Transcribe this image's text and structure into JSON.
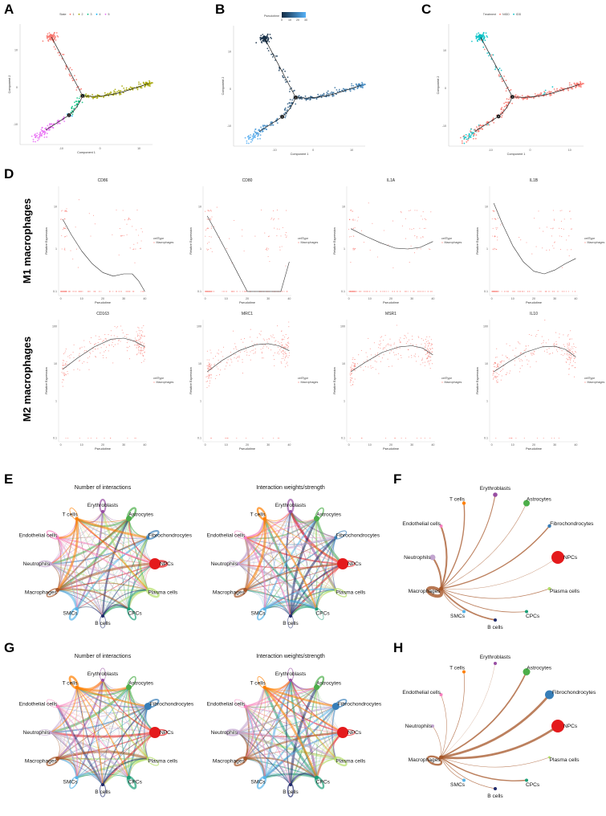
{
  "panel_labels": [
    "A",
    "B",
    "C",
    "D",
    "E",
    "F",
    "G",
    "H"
  ],
  "row_labels": {
    "m1": "M1 macrophages",
    "m2": "M2 macrophages"
  },
  "chart_data": {
    "trajectory_panels": [
      {
        "panel": "A",
        "type": "scatter",
        "xlabel": "Component 1",
        "ylabel": "Component 2",
        "xticks": [
          -10,
          0,
          10
        ],
        "yticks": [
          -10,
          0,
          10
        ],
        "xlim": [
          -20.6,
          13.5
        ],
        "ylim": [
          -15.4,
          17
        ],
        "color_by": "state",
        "legend": {
          "title": "State",
          "items": [
            "1",
            "2",
            "3",
            "4",
            "5"
          ],
          "colors": [
            "#F8766D",
            "#A3A500",
            "#00BF7D",
            "#00B0F6",
            "#E76BF3"
          ]
        }
      },
      {
        "panel": "B",
        "type": "scatter",
        "xlabel": "Component 1",
        "ylabel": "Component 2",
        "xticks": [
          -10,
          0,
          10
        ],
        "yticks": [
          -10,
          0,
          10
        ],
        "xlim": [
          -20.6,
          13.5
        ],
        "ylim": [
          -15.4,
          17
        ],
        "color_by": "pseudotime",
        "legend": {
          "title": "Pseudotime",
          "items": [
            "0",
            "10",
            "20",
            "30"
          ],
          "colors": [
            "#132B43",
            "#56B1F7"
          ]
        }
      },
      {
        "panel": "C",
        "type": "scatter",
        "xlabel": "Component 1",
        "ylabel": "Component 2",
        "xticks": [
          -10,
          0,
          10
        ],
        "yticks": [
          -10,
          0,
          10
        ],
        "xlim": [
          -20.6,
          13.5
        ],
        "ylim": [
          -15.4,
          17
        ],
        "color_by": "treatment",
        "legend": {
          "title": "Treatment",
          "items": [
            "NIDD",
            "IDD"
          ],
          "colors": [
            "#F8766D",
            "#00BFC4"
          ]
        }
      }
    ],
    "trajectory": {
      "upper_tip": [
        -12.5,
        13.5
      ],
      "branch_point_1": [
        -4.5,
        -2.3
      ],
      "branch_point_2": [
        -8,
        -7.5
      ],
      "lower_tip": [
        -14,
        -11.5
      ],
      "right_tip": [
        12.5,
        1.0
      ],
      "right_mid": [
        0,
        -2.5
      ]
    },
    "expression_panels": [
      {
        "gene": "CD86",
        "group": "m1",
        "xlabel": "Pseudotime",
        "ylabel": "Relative Expression",
        "xticks": [
          0,
          10,
          20,
          30,
          40
        ],
        "yticks": [
          0.1,
          1.0,
          10.0
        ],
        "ylim": [
          0.08,
          30
        ],
        "curve": [
          [
            1,
            5
          ],
          [
            5,
            2.2
          ],
          [
            10,
            0.9
          ],
          [
            15,
            0.45
          ],
          [
            20,
            0.28
          ],
          [
            25,
            0.23
          ],
          [
            30,
            0.26
          ],
          [
            34,
            0.26
          ],
          [
            37,
            0.18
          ],
          [
            40,
            0.1
          ]
        ]
      },
      {
        "gene": "CD80",
        "group": "m1",
        "xlabel": "Pseudotime",
        "ylabel": "Relative Expression",
        "xticks": [
          0,
          10,
          20,
          30,
          40
        ],
        "yticks": [
          0.1,
          1.0,
          10.0
        ],
        "ylim": [
          0.08,
          30
        ],
        "curve": [
          [
            1,
            6
          ],
          [
            5,
            2.6
          ],
          [
            10,
            0.9
          ],
          [
            15,
            0.3
          ],
          [
            20,
            0.1
          ],
          [
            30,
            0.1
          ],
          [
            36,
            0.1
          ],
          [
            40,
            0.5
          ]
        ]
      },
      {
        "gene": "IL1A",
        "group": "m1",
        "xlabel": "Pseudotime",
        "ylabel": "Relative Expression",
        "xticks": [
          0,
          10,
          20,
          30,
          40
        ],
        "yticks": [
          0.1,
          1.0,
          10.0
        ],
        "ylim": [
          0.08,
          30
        ],
        "curve": [
          [
            1,
            3
          ],
          [
            8,
            2
          ],
          [
            15,
            1.4
          ],
          [
            22,
            1.05
          ],
          [
            28,
            1.0
          ],
          [
            34,
            1.1
          ],
          [
            40,
            1.5
          ]
        ]
      },
      {
        "gene": "IL1B",
        "group": "m1",
        "xlabel": "Pseudotime",
        "ylabel": "Relative Expression",
        "xticks": [
          0,
          10,
          20,
          30,
          40
        ],
        "yticks": [
          0.1,
          1.0,
          10.0
        ],
        "ylim": [
          0.08,
          30
        ],
        "curve": [
          [
            1,
            12
          ],
          [
            5,
            4
          ],
          [
            10,
            1.2
          ],
          [
            15,
            0.5
          ],
          [
            20,
            0.3
          ],
          [
            25,
            0.26
          ],
          [
            30,
            0.32
          ],
          [
            35,
            0.45
          ],
          [
            40,
            0.6
          ]
        ]
      },
      {
        "gene": "CD163",
        "group": "m2",
        "xlabel": "Pseudotime",
        "ylabel": "Relative Expression",
        "xticks": [
          0,
          10,
          20,
          30,
          40
        ],
        "yticks": [
          0.1,
          1.0,
          10.0,
          100.0
        ],
        "ylim": [
          0.08,
          150
        ],
        "curve": [
          [
            1,
            7
          ],
          [
            8,
            14
          ],
          [
            16,
            28
          ],
          [
            24,
            45
          ],
          [
            30,
            48
          ],
          [
            35,
            40
          ],
          [
            40,
            28
          ]
        ]
      },
      {
        "gene": "MRC1",
        "group": "m2",
        "xlabel": "Pseudotime",
        "ylabel": "Relative Expression",
        "xticks": [
          0,
          10,
          20,
          30,
          40
        ],
        "yticks": [
          0.1,
          1.0,
          10.0,
          100.0
        ],
        "ylim": [
          0.08,
          150
        ],
        "curve": [
          [
            1,
            6
          ],
          [
            8,
            12
          ],
          [
            16,
            22
          ],
          [
            24,
            32
          ],
          [
            30,
            34
          ],
          [
            35,
            30
          ],
          [
            40,
            22
          ]
        ]
      },
      {
        "gene": "MSR1",
        "group": "m2",
        "xlabel": "Pseudotime",
        "ylabel": "Relative Expression",
        "xticks": [
          0,
          10,
          20,
          30,
          40
        ],
        "yticks": [
          0.1,
          1.0,
          10.0,
          100.0
        ],
        "ylim": [
          0.08,
          150
        ],
        "curve": [
          [
            1,
            6
          ],
          [
            8,
            11
          ],
          [
            16,
            20
          ],
          [
            24,
            28
          ],
          [
            30,
            30
          ],
          [
            35,
            26
          ],
          [
            40,
            17
          ]
        ]
      },
      {
        "gene": "IL10",
        "group": "m2",
        "xlabel": "Pseudotime",
        "ylabel": "Relative Expression",
        "xticks": [
          0,
          10,
          20,
          30,
          40
        ],
        "yticks": [
          0.1,
          1.0,
          10.0,
          100.0
        ],
        "ylim": [
          0.08,
          150
        ],
        "curve": [
          [
            1,
            6
          ],
          [
            8,
            11
          ],
          [
            16,
            20
          ],
          [
            24,
            28
          ],
          [
            30,
            29
          ],
          [
            35,
            24
          ],
          [
            40,
            15
          ]
        ]
      }
    ],
    "expression_legend": {
      "title": "cellType",
      "item": "Macrophages",
      "color": "#F8766D"
    },
    "cell_types": [
      "Erythroblasts",
      "Astrocytes",
      "Fibrochondrocytes",
      "NPCs",
      "Plasma cells",
      "CPCs",
      "B cells",
      "SMCs",
      "Macrophages",
      "Neutrophils",
      "Endothelial cells",
      "T cells"
    ],
    "cell_colors": [
      "#984EA3",
      "#4DAF4A",
      "#377EB8",
      "#E41A1C",
      "#B3DE69",
      "#1B9E77",
      "#1F2A6B",
      "#56B4E9",
      "#A65628",
      "#C2A5CF",
      "#F781BF",
      "#FF7F00"
    ],
    "network_panels": [
      {
        "panel": "E",
        "type": "circle",
        "title": "Number of interactions",
        "node_size": [
          2,
          3.5,
          2,
          7,
          1.5,
          2,
          2,
          2,
          2.5,
          2,
          2,
          2
        ]
      },
      {
        "panel": "E",
        "type": "circle",
        "title": "Interaction weights/strength",
        "node_size": [
          2,
          3.5,
          2,
          7,
          1.5,
          2,
          2,
          2,
          2.5,
          2,
          2,
          2
        ]
      },
      {
        "panel": "F",
        "type": "hub",
        "source": "Macrophages",
        "node_size": [
          2.8,
          4,
          2.2,
          8,
          2,
          2,
          2,
          2,
          2.5,
          3.5,
          2,
          2.2
        ],
        "edge_weight": [
          1.5,
          0.8,
          2,
          0.6,
          1,
          1.2,
          2.5,
          1,
          5,
          3,
          3,
          2
        ]
      },
      {
        "panel": "G",
        "type": "circle",
        "title": "Number of interactions",
        "node_size": [
          2,
          3.5,
          4.5,
          7,
          1.5,
          2.5,
          2,
          2,
          2.5,
          2,
          2,
          2
        ]
      },
      {
        "panel": "G",
        "type": "circle",
        "title": "Interaction weights/strength",
        "node_size": [
          2,
          3.5,
          4.5,
          7,
          1.5,
          2.5,
          2,
          2,
          2.5,
          2,
          2,
          2
        ]
      },
      {
        "panel": "H",
        "type": "hub",
        "source": "Macrophages",
        "node_size": [
          2,
          4.5,
          5.5,
          8,
          1.5,
          2,
          2,
          2,
          2.5,
          2,
          2,
          2
        ],
        "edge_weight": [
          0.4,
          2.5,
          4,
          4,
          0.8,
          2,
          1,
          1,
          3,
          0.8,
          0.8,
          1
        ]
      }
    ]
  }
}
